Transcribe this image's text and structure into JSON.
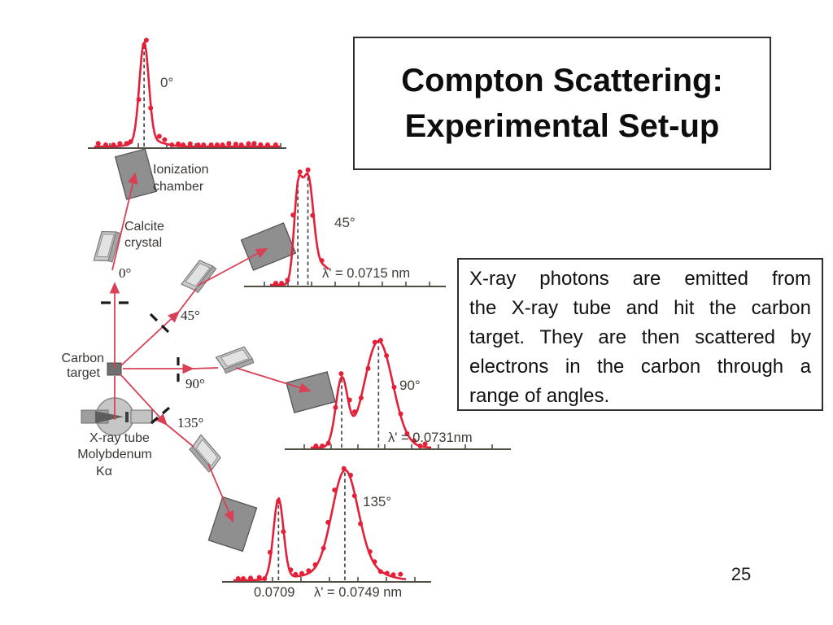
{
  "slide": {
    "title_line1": "Compton Scattering:",
    "title_line2": "Experimental Set-up",
    "description_lines": [
      "X-ray photons are emitted from",
      "the X-ray tube and hit the carbon",
      "target. They are then scattered by",
      "electrons in the carbon through a",
      "range of angles."
    ],
    "page_number": "25"
  },
  "diagram": {
    "labels": {
      "ionization_chamber_line1": "Ionization",
      "ionization_chamber_line2": "chamber",
      "calcite_line1": "Calcite",
      "calcite_line2": "crystal",
      "carbon_line1": "Carbon",
      "carbon_line2": "target",
      "xray_tube": "X-ray tube",
      "molybdenum": "Molybdenum",
      "k_alpha": "Kα",
      "beam_angle_0": "0°",
      "beam_angle_45": "45°",
      "beam_angle_90": "90°",
      "beam_angle_135": "135°"
    },
    "colors": {
      "beam_red": "#d84055",
      "curve_red": "#e42039",
      "axis_gray": "#4f4c42",
      "dashed_gray": "#4a4a4a",
      "apparatus_gray": "#8f8f8f",
      "crystal_gray": "#c9c9c9",
      "label_text": "#3c3732"
    }
  },
  "chart_data": [
    {
      "id": "graph-0deg",
      "type": "line",
      "angle_label": "0°",
      "x_unit": "nm",
      "x_range_nm": [
        0.0675,
        0.0795
      ],
      "peaks": [
        {
          "center_nm": 0.0709,
          "rel_height": 1.0,
          "sigma_nm": 0.00028
        },
        {
          "center_nm": 0.0712,
          "rel_height": 0.06,
          "sigma_nm": 0.0008
        }
      ],
      "dashed_at_nm": [
        0.0709
      ],
      "annotations": []
    },
    {
      "id": "graph-45deg",
      "type": "line",
      "angle_label": "45°",
      "x_unit": "nm",
      "x_range_nm": [
        0.0677,
        0.0797
      ],
      "peaks": [
        {
          "center_nm": 0.0709,
          "rel_height": 0.84,
          "sigma_nm": 0.00024
        },
        {
          "center_nm": 0.0715,
          "rel_height": 1.0,
          "sigma_nm": 0.00032
        },
        {
          "center_nm": 0.0724,
          "rel_height": 0.18,
          "sigma_nm": 0.00055
        }
      ],
      "dashed_at_nm": [
        0.0709,
        0.0715
      ],
      "annotations": [
        "λ' = 0.0715 nm"
      ]
    },
    {
      "id": "graph-90deg",
      "type": "line",
      "angle_label": "90°",
      "x_unit": "nm",
      "x_range_nm": [
        0.0675,
        0.081
      ],
      "peaks": [
        {
          "center_nm": 0.0709,
          "rel_height": 0.63,
          "sigma_nm": 0.00035
        },
        {
          "center_nm": 0.0731,
          "rel_height": 1.0,
          "sigma_nm": 0.00085
        }
      ],
      "dashed_at_nm": [
        0.0709,
        0.0731
      ],
      "annotations": [
        "λ' = 0.0731nm"
      ]
    },
    {
      "id": "graph-135deg",
      "type": "line",
      "angle_label": "135°",
      "x_unit": "nm",
      "x_range_nm": [
        0.0675,
        0.0801
      ],
      "peaks": [
        {
          "center_nm": 0.0709,
          "rel_height": 0.8,
          "sigma_nm": 0.0003
        },
        {
          "center_nm": 0.0749,
          "rel_height": 1.0,
          "sigma_nm": 0.00078
        },
        {
          "center_nm": 0.0732,
          "rel_height": 0.05,
          "sigma_nm": 0.0015
        },
        {
          "center_nm": 0.076,
          "rel_height": 0.1,
          "sigma_nm": 0.0012
        }
      ],
      "dashed_at_nm": [
        0.0709,
        0.0749
      ],
      "annotations": [
        "0.0709",
        "λ' = 0.0749 nm"
      ]
    }
  ]
}
